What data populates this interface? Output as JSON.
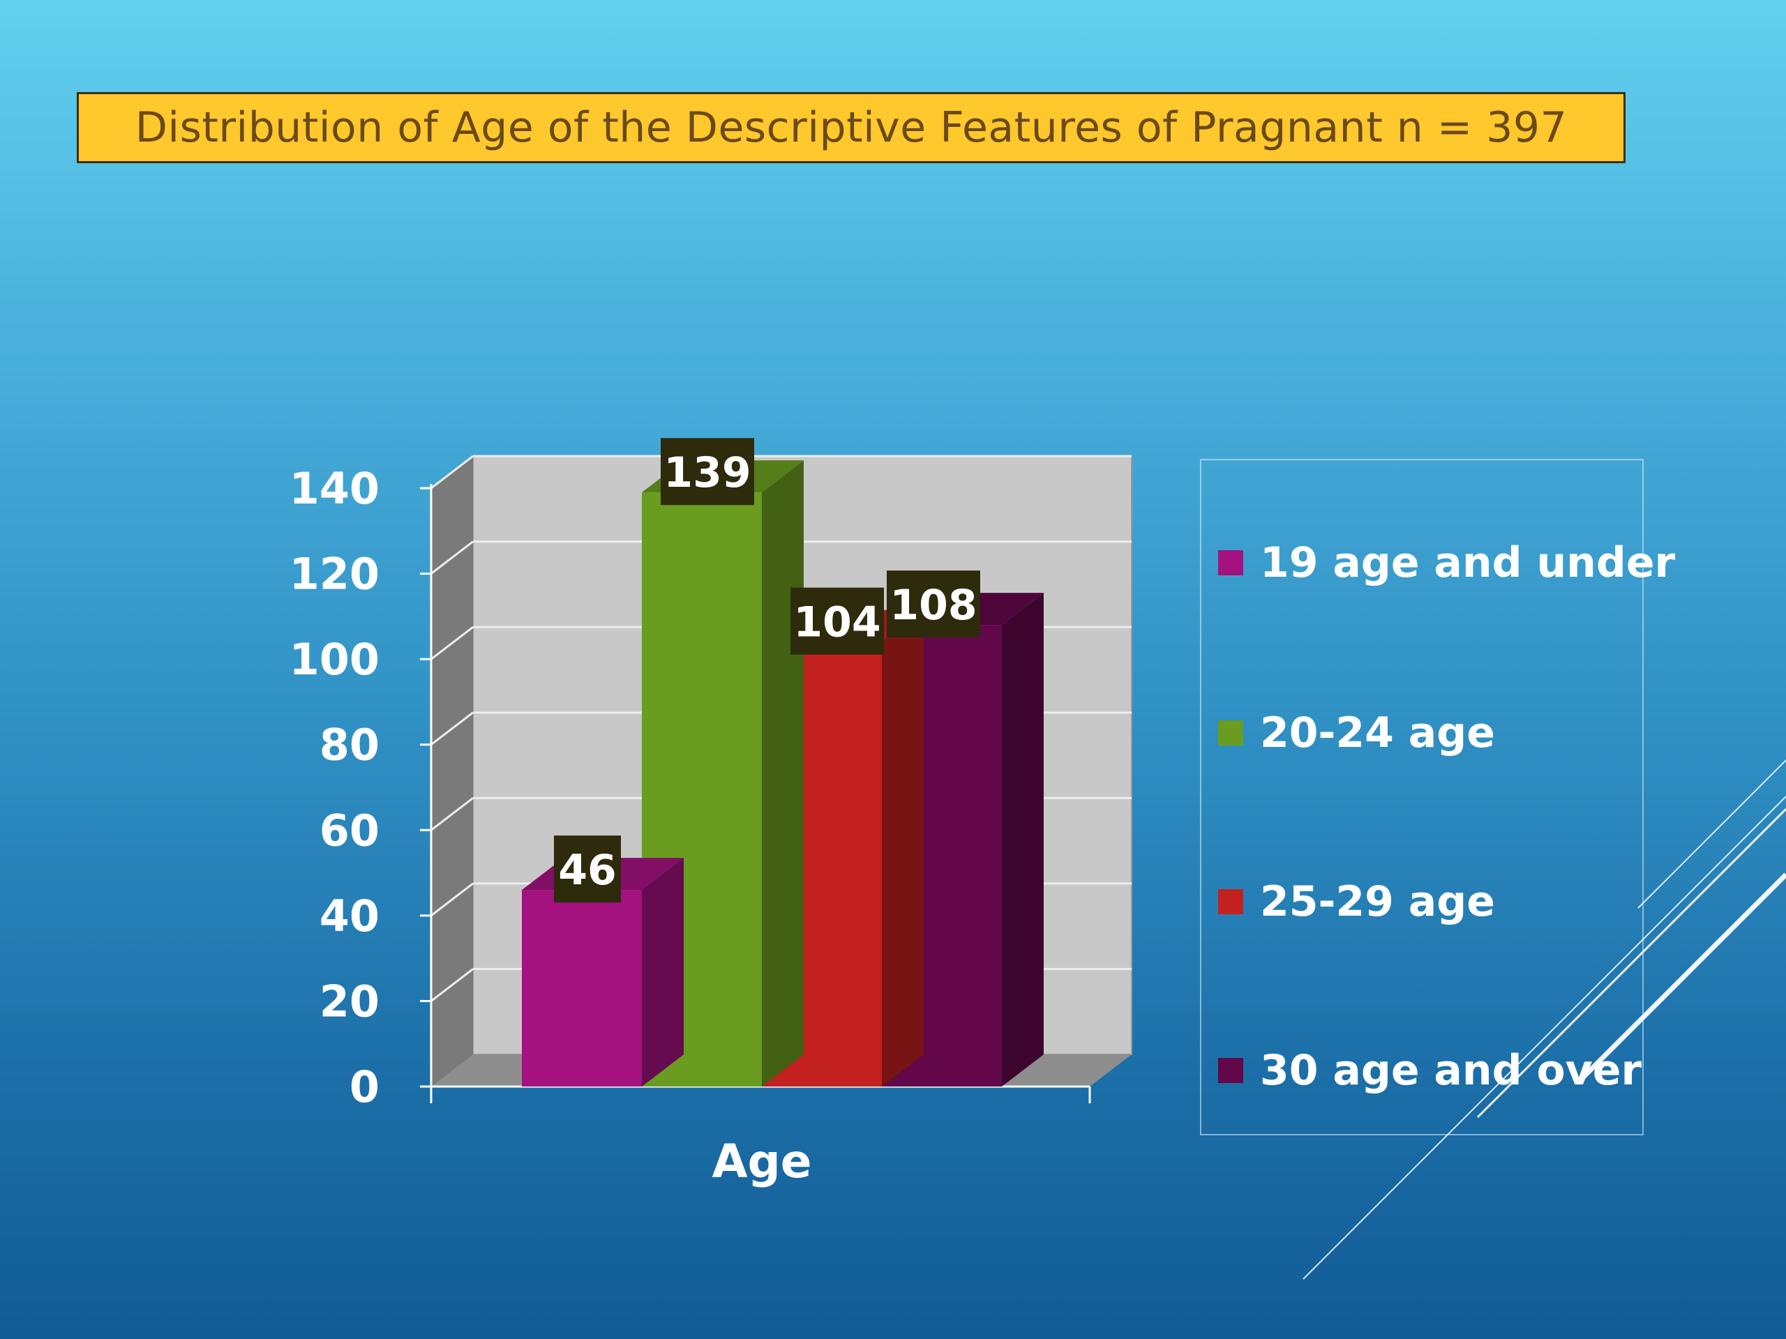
{
  "title": "Distribution of Age of the Descriptive Features of Pragnant n = 397",
  "chart_data": {
    "type": "bar",
    "style": "3d-clustered-column",
    "xlabel": "Age",
    "ylabel": "",
    "ylim": [
      0,
      140
    ],
    "yticks": [
      "0",
      "20",
      "40",
      "60",
      "80",
      "100",
      "120",
      "140"
    ],
    "categories": [
      "Age"
    ],
    "series": [
      {
        "name": "19 age and under",
        "values": [
          46
        ],
        "color": "#a3127f"
      },
      {
        "name": "20-24 age",
        "values": [
          139
        ],
        "color": "#6a9c1f"
      },
      {
        "name": "25-29 age",
        "values": [
          104
        ],
        "color": "#c32020"
      },
      {
        "name": "30 age and over",
        "values": [
          108
        ],
        "color": "#62084a"
      }
    ],
    "data_labels": [
      "46",
      "139",
      "104",
      "108"
    ],
    "grid": true,
    "legend_position": "right"
  }
}
